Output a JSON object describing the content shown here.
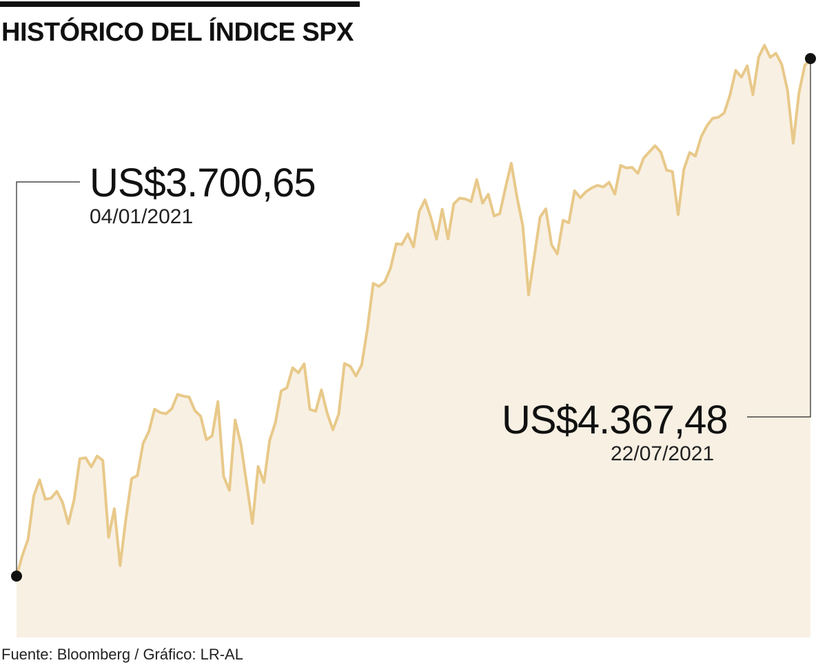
{
  "title": "HISTÓRICO DEL ÍNDICE SPX",
  "source": "Fuente: Bloomberg / Gráfico: LR-AL",
  "annotations": {
    "start": {
      "value_label": "US$3.700,65",
      "date_label": "04/01/2021"
    },
    "end": {
      "value_label": "US$4.367,48",
      "date_label": "22/07/2021"
    }
  },
  "colors": {
    "line": "#e8c98a",
    "fill": "#f8f0e3",
    "marker": "#111111"
  },
  "chart_data": {
    "type": "area",
    "title": "HISTÓRICO DEL ÍNDICE SPX",
    "xlabel": "",
    "ylabel": "",
    "x_start": "04/01/2021",
    "x_end": "22/07/2021",
    "ylim": [
      3700.65,
      4367.48
    ],
    "grid": false,
    "legend": "none",
    "series": [
      {
        "values": [
          3700.65,
          3726.86,
          3748.14,
          3803.79,
          3824.68,
          3799.61,
          3801.19,
          3809.84,
          3795.54,
          3768.25,
          3798.91,
          3851.85,
          3853.07,
          3841.47,
          3855.36,
          3849.62,
          3750.77,
          3787.38,
          3714.24,
          3773.86,
          3826.31,
          3830.17,
          3871.74,
          3886.83,
          3915.59,
          3911.23,
          3909.88,
          3916.38,
          3934.83,
          3932.59,
          3931.33,
          3913.97,
          3906.71,
          3876.5,
          3881.37,
          3925.43,
          3829.34,
          3811.15,
          3901.82,
          3870.29,
          3819.72,
          3768.47,
          3841.94,
          3821.35,
          3875.44,
          3898.81,
          3939.34,
          3943.34,
          3968.94,
          3962.71,
          3974.12,
          3915.46,
          3913.1,
          3940.59,
          3910.52,
          3889.14,
          3909.52,
          3974.54,
          3971.09,
          3958.55,
          3972.89,
          4019.87,
          4077.91,
          4073.94,
          4079.95,
          4097.17,
          4128.8,
          4127.99,
          4141.59,
          4124.66,
          4170.42,
          4185.47,
          4163.26,
          4134.94,
          4173.42,
          4134.98,
          4180.17,
          4187.62,
          4186.72,
          4183.18,
          4211.47,
          4181.17,
          4192.66,
          4164.66,
          4167.59,
          4201.62,
          4232.6,
          4188.43,
          4152.1,
          4063.04,
          4112.5,
          4163.29,
          4173.85,
          4127.83,
          4115.68,
          4159.12,
          4155.86,
          4197.05,
          4188.13,
          4195.99,
          4200.88,
          4204.11,
          4202.04,
          4208.12,
          4192.85,
          4229.89,
          4226.52,
          4227.26,
          4219.55,
          4239.18,
          4247.44,
          4255.15,
          4246.59,
          4223.7,
          4221.86,
          4166.45,
          4224.79,
          4246.44,
          4241.84,
          4266.49,
          4280.7,
          4290.61,
          4291.8,
          4297.5,
          4319.94,
          4352.34,
          4343.54,
          4358.13,
          4320.82,
          4369.55,
          4384.63,
          4369.21,
          4374.3,
          4360.03,
          4327.16,
          4258.49,
          4323.06,
          4358.69,
          4367.48
        ]
      }
    ]
  }
}
